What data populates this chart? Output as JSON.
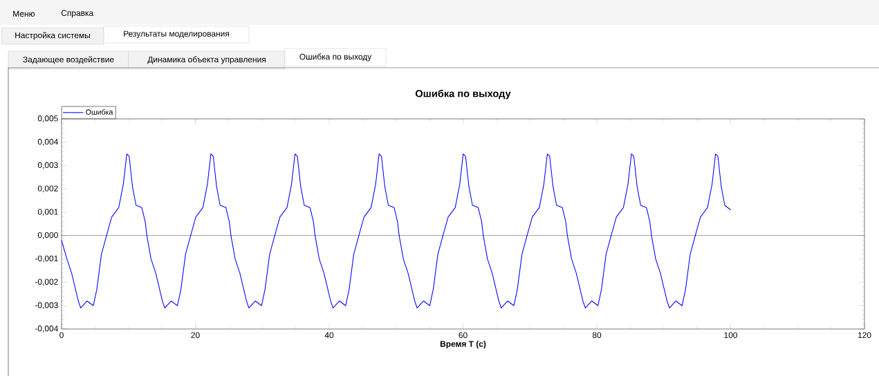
{
  "chart_data": {
    "type": "line",
    "title": "Ошибка по выходу",
    "xlabel": "Время T (с)",
    "annotations": [
      "Меню",
      "Справка",
      "Настройка системы",
      "Результаты моделирования",
      "Задающее воздействие",
      "Динамика объекта управления",
      "Ошибка по выходу"
    ],
    "legend": "top left",
    "grid": false,
    "marker": "none",
    "line_style": "solid",
    "xlim": [
      0,
      120
    ],
    "xticks": [
      0,
      20,
      40,
      60,
      80,
      100,
      120
    ],
    "ylim": [
      -0.004,
      0.005
    ],
    "yticks": [
      {
        "value": -0.004,
        "label": "-0,004"
      },
      {
        "value": -0.003,
        "label": "-0,003"
      },
      {
        "value": -0.002,
        "label": "-0,002"
      },
      {
        "value": -0.001,
        "label": "-0,001"
      },
      {
        "value": 0,
        "label": "0,000"
      },
      {
        "value": 0.001,
        "label": "0,001"
      },
      {
        "value": 0.002,
        "label": "0,002"
      },
      {
        "value": 0.003,
        "label": "0,003"
      },
      {
        "value": 0.004,
        "label": "0,004"
      },
      {
        "value": 0.005,
        "label": "0,005"
      }
    ],
    "ref_lines": [
      {
        "axis": "y",
        "value": 0,
        "color": "#000000"
      }
    ],
    "series": [
      {
        "name": "Ошибка",
        "color": "#0000ff",
        "x": [
          0,
          0.8,
          1.5,
          2.5,
          2.86,
          3.82,
          4.75,
          5.27,
          5.96,
          6.72,
          7.5,
          8.55,
          9.23,
          9.75,
          10.1,
          10.6,
          11.13,
          11.99,
          12.5,
          12.75,
          13.37,
          14.07,
          15.07,
          15.43,
          16.39,
          17.32,
          17.84,
          18.53,
          19.29,
          20.07,
          21.12,
          21.8,
          22.32,
          22.67,
          23.17,
          23.7,
          24.56,
          25.07,
          25.32,
          25.94,
          26.64,
          27.64,
          28,
          28.96,
          29.89,
          30.41,
          31.1,
          31.86,
          32.64,
          33.69,
          34.37,
          34.89,
          35.24,
          35.74,
          36.27,
          37.13,
          37.64,
          37.89,
          38.51,
          39.21,
          40.21,
          40.57,
          41.53,
          42.46,
          42.98,
          43.67,
          44.43,
          45.21,
          46.26,
          46.94,
          47.46,
          47.81,
          48.31,
          48.84,
          49.7,
          50.21,
          50.46,
          51.08,
          51.78,
          52.78,
          53.14,
          54.1,
          55.03,
          55.55,
          56.24,
          57,
          57.78,
          58.83,
          59.51,
          60.03,
          60.38,
          60.88,
          61.41,
          62.27,
          62.78,
          63.03,
          63.65,
          64.35,
          65.35,
          65.71,
          66.67,
          67.6,
          68.12,
          68.81,
          69.57,
          70.35,
          71.4,
          72.08,
          72.6,
          72.95,
          73.45,
          73.98,
          74.84,
          75.35,
          75.6,
          76.22,
          76.92,
          77.92,
          78.28,
          79.24,
          80.17,
          80.69,
          81.38,
          82.14,
          82.92,
          83.97,
          84.65,
          85.17,
          85.52,
          86.02,
          86.55,
          87.41,
          87.92,
          88.17,
          88.79,
          89.49,
          90.49,
          90.85,
          91.81,
          92.74,
          93.26,
          93.95,
          94.71,
          95.49,
          96.54,
          97.22,
          97.74,
          98.09,
          98.59,
          99.12,
          100
        ],
        "values": [
          -0.0002,
          -0.001,
          -0.0016,
          -0.0028,
          -0.0031,
          -0.0028,
          -0.003,
          -0.0023,
          -0.0008,
          0,
          0.0008,
          0.0012,
          0.0022,
          0.0035,
          0.0034,
          0.0021,
          0.0013,
          0.0012,
          0.0006,
          0,
          -0.001,
          -0.0016,
          -0.0028,
          -0.0031,
          -0.0028,
          -0.003,
          -0.0023,
          -0.0008,
          0,
          0.0008,
          0.0012,
          0.0022,
          0.0035,
          0.0034,
          0.0021,
          0.0013,
          0.0012,
          0.0006,
          0,
          -0.001,
          -0.0016,
          -0.0028,
          -0.0031,
          -0.0028,
          -0.003,
          -0.0023,
          -0.0008,
          0,
          0.0008,
          0.0012,
          0.0022,
          0.0035,
          0.0034,
          0.0021,
          0.0013,
          0.0012,
          0.0006,
          0,
          -0.001,
          -0.0016,
          -0.0028,
          -0.0031,
          -0.0028,
          -0.003,
          -0.0023,
          -0.0008,
          0,
          0.0008,
          0.0012,
          0.0022,
          0.0035,
          0.0034,
          0.0021,
          0.0013,
          0.0012,
          0.0006,
          0,
          -0.001,
          -0.0016,
          -0.0028,
          -0.0031,
          -0.0028,
          -0.003,
          -0.0023,
          -0.0008,
          0,
          0.0008,
          0.0012,
          0.0022,
          0.0035,
          0.0034,
          0.0021,
          0.0013,
          0.0012,
          0.0006,
          0,
          -0.001,
          -0.0016,
          -0.0028,
          -0.0031,
          -0.0028,
          -0.003,
          -0.0023,
          -0.0008,
          0,
          0.0008,
          0.0012,
          0.0022,
          0.0035,
          0.0034,
          0.0021,
          0.0013,
          0.0012,
          0.0006,
          0,
          -0.001,
          -0.0016,
          -0.0028,
          -0.0031,
          -0.0028,
          -0.003,
          -0.0023,
          -0.0008,
          0,
          0.0008,
          0.0012,
          0.0022,
          0.0035,
          0.0034,
          0.0021,
          0.0013,
          0.0012,
          0.0006,
          0,
          -0.001,
          -0.0016,
          -0.0028,
          -0.0031,
          -0.0028,
          -0.003,
          -0.0023,
          -0.0008,
          0,
          0.0008,
          0.0012,
          0.0022,
          0.0035,
          0.0034,
          0.0021,
          0.0013,
          0.0011
        ]
      }
    ]
  }
}
